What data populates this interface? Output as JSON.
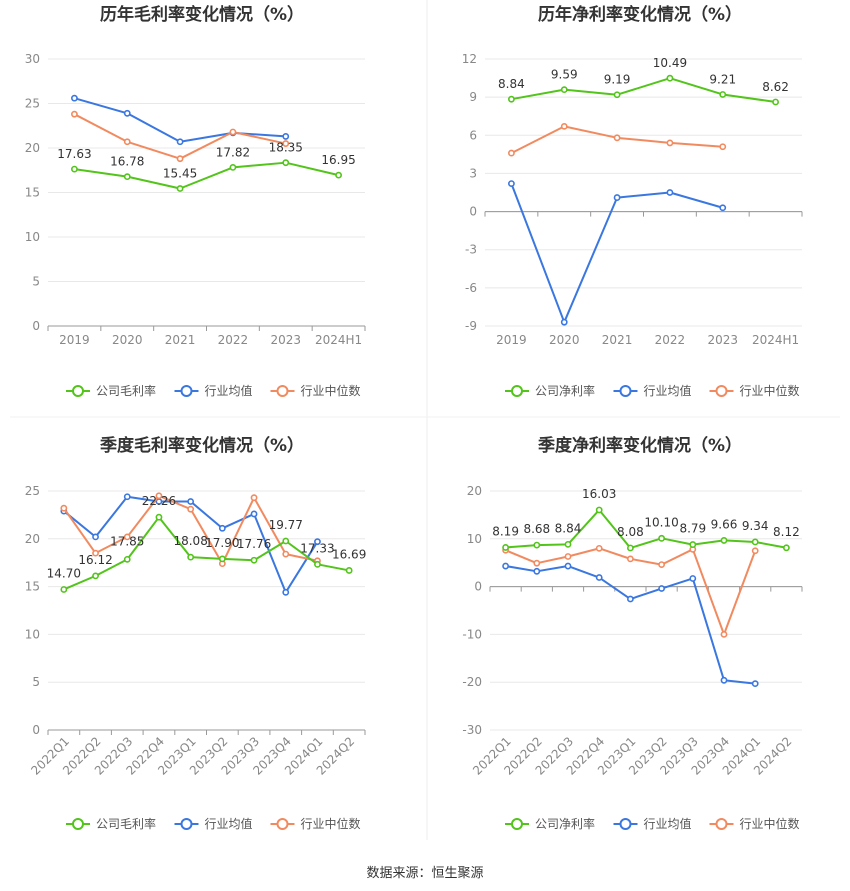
{
  "colors": {
    "company": "#52c41a",
    "industry_avg": "#3a77e0",
    "industry_median": "#f28a5f",
    "grid": "#e8e8e8",
    "axis_text": "#888888",
    "label_text": "#333333",
    "title_text": "#333333"
  },
  "source_text": "数据来源：恒生聚源",
  "chart_data": [
    {
      "type": "line",
      "title": "历年毛利率变化情况（%）",
      "categories": [
        "2019",
        "2020",
        "2021",
        "2022",
        "2023",
        "2024H1"
      ],
      "ylim": [
        0,
        30
      ],
      "yticks": [
        0,
        5,
        10,
        15,
        20,
        25,
        30
      ],
      "xlabel": "",
      "ylabel": "",
      "grid": true,
      "legend_position": "bottom",
      "series": [
        {
          "name": "公司毛利率",
          "role": "company",
          "values": [
            17.63,
            16.78,
            15.45,
            17.82,
            18.35,
            16.95
          ],
          "labels": [
            "17.63",
            "16.78",
            "15.45",
            "17.82",
            "18.35",
            "16.95"
          ]
        },
        {
          "name": "行业均值",
          "role": "industry_avg",
          "values": [
            25.6,
            23.9,
            20.7,
            21.7,
            21.3,
            null
          ],
          "labels": []
        },
        {
          "name": "行业中位数",
          "role": "industry_median",
          "values": [
            23.8,
            20.7,
            18.8,
            21.8,
            20.5,
            null
          ],
          "labels": []
        }
      ]
    },
    {
      "type": "line",
      "title": "历年净利率变化情况（%）",
      "categories": [
        "2019",
        "2020",
        "2021",
        "2022",
        "2023",
        "2024H1"
      ],
      "ylim": [
        -9,
        12
      ],
      "yticks": [
        -9,
        -6,
        -3,
        0,
        3,
        6,
        9,
        12
      ],
      "xlabel": "",
      "ylabel": "",
      "grid": true,
      "legend_position": "bottom",
      "series": [
        {
          "name": "公司净利率",
          "role": "company",
          "values": [
            8.84,
            9.59,
            9.19,
            10.49,
            9.21,
            8.62
          ],
          "labels": [
            "8.84",
            "9.59",
            "9.19",
            "10.49",
            "9.21",
            "8.62"
          ]
        },
        {
          "name": "行业均值",
          "role": "industry_avg",
          "values": [
            2.2,
            -8.7,
            1.1,
            1.5,
            0.3,
            null
          ],
          "labels": []
        },
        {
          "name": "行业中位数",
          "role": "industry_median",
          "values": [
            4.6,
            6.7,
            5.8,
            5.4,
            5.1,
            null
          ],
          "labels": []
        }
      ]
    },
    {
      "type": "line",
      "title": "季度毛利率变化情况（%）",
      "categories": [
        "2022Q1",
        "2022Q2",
        "2022Q3",
        "2022Q4",
        "2023Q1",
        "2023Q2",
        "2023Q3",
        "2023Q4",
        "2024Q1",
        "2024Q2"
      ],
      "ylim": [
        0,
        25
      ],
      "yticks": [
        0,
        5,
        10,
        15,
        20,
        25
      ],
      "xlabel": "",
      "ylabel": "",
      "grid": true,
      "legend_position": "bottom",
      "series": [
        {
          "name": "公司毛利率",
          "role": "company",
          "values": [
            14.7,
            16.12,
            17.85,
            22.26,
            18.08,
            17.9,
            17.76,
            19.77,
            17.33,
            16.69
          ],
          "labels": [
            "14.70",
            "16.12",
            "17.85",
            "22.26",
            "18.08",
            "17.90",
            "17.76",
            "19.77",
            "17.33",
            "16.69"
          ]
        },
        {
          "name": "行业均值",
          "role": "industry_avg",
          "values": [
            22.9,
            20.2,
            24.4,
            23.9,
            23.9,
            21.1,
            22.6,
            14.4,
            19.7,
            null
          ],
          "labels": []
        },
        {
          "name": "行业中位数",
          "role": "industry_median",
          "values": [
            23.2,
            18.5,
            20.2,
            24.5,
            23.1,
            17.4,
            24.3,
            18.4,
            17.7,
            null
          ],
          "labels": []
        }
      ]
    },
    {
      "type": "line",
      "title": "季度净利率变化情况（%）",
      "categories": [
        "2022Q1",
        "2022Q2",
        "2022Q3",
        "2022Q4",
        "2023Q1",
        "2023Q2",
        "2023Q3",
        "2023Q4",
        "2024Q1",
        "2024Q2"
      ],
      "ylim": [
        -30,
        20
      ],
      "yticks": [
        -30,
        -20,
        -10,
        0,
        10,
        20
      ],
      "xlabel": "",
      "ylabel": "",
      "grid": true,
      "legend_position": "bottom",
      "series": [
        {
          "name": "公司净利率",
          "role": "company",
          "values": [
            8.19,
            8.68,
            8.84,
            16.03,
            8.08,
            10.1,
            8.79,
            9.66,
            9.34,
            8.12
          ],
          "labels": [
            "8.19",
            "8.68",
            "8.84",
            "16.03",
            "8.08",
            "10.10",
            "8.79",
            "9.66",
            "9.34",
            "8.12"
          ]
        },
        {
          "name": "行业均值",
          "role": "industry_avg",
          "values": [
            4.3,
            3.2,
            4.3,
            1.9,
            -2.6,
            -0.4,
            1.7,
            -19.6,
            -20.3,
            null
          ],
          "labels": []
        },
        {
          "name": "行业中位数",
          "role": "industry_median",
          "values": [
            7.6,
            4.9,
            6.3,
            8.0,
            5.8,
            4.6,
            7.8,
            -10.0,
            7.5,
            null
          ],
          "labels": []
        }
      ]
    }
  ]
}
